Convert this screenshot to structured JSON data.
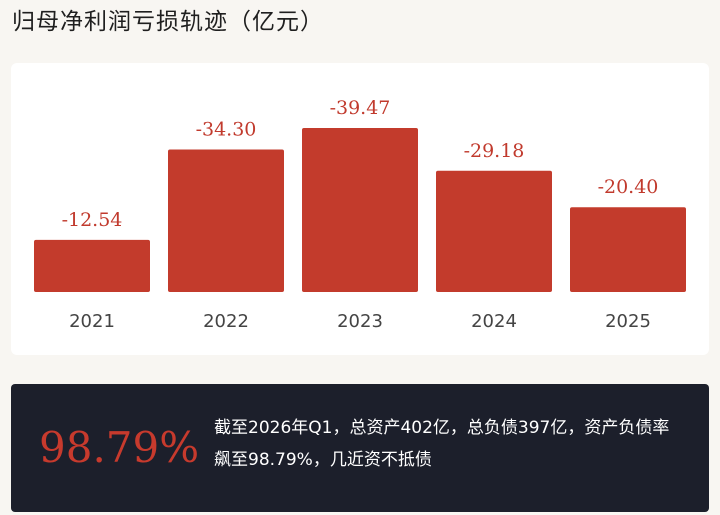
{
  "page": {
    "title": "归母净利润亏损轨迹（亿元）"
  },
  "colors": {
    "bar": "#c33b2c",
    "value_label": "#c13a2d",
    "tick_label": "#444444",
    "panel_bg": "#1c1f2b",
    "highlight": "#c73a2d"
  },
  "chart_data": {
    "type": "bar",
    "title": "归母净利润亏损轨迹（亿元）",
    "categories": [
      "2021",
      "2022",
      "2023",
      "2024",
      "2025"
    ],
    "values": [
      -12.54,
      -34.3,
      -39.47,
      -29.18,
      -20.4
    ],
    "value_labels": [
      "-12.54",
      "-34.30",
      "-39.47",
      "-29.18",
      "-20.40"
    ],
    "xlabel": "",
    "ylabel": "",
    "bars_show": "magnitude of loss",
    "grid": false,
    "legend": "none"
  },
  "summary": {
    "ratio": "98.79%",
    "text": "截至2026年Q1，总资产402亿，总负债397亿，资产负债率飙至98.79%，几近资不抵债"
  }
}
